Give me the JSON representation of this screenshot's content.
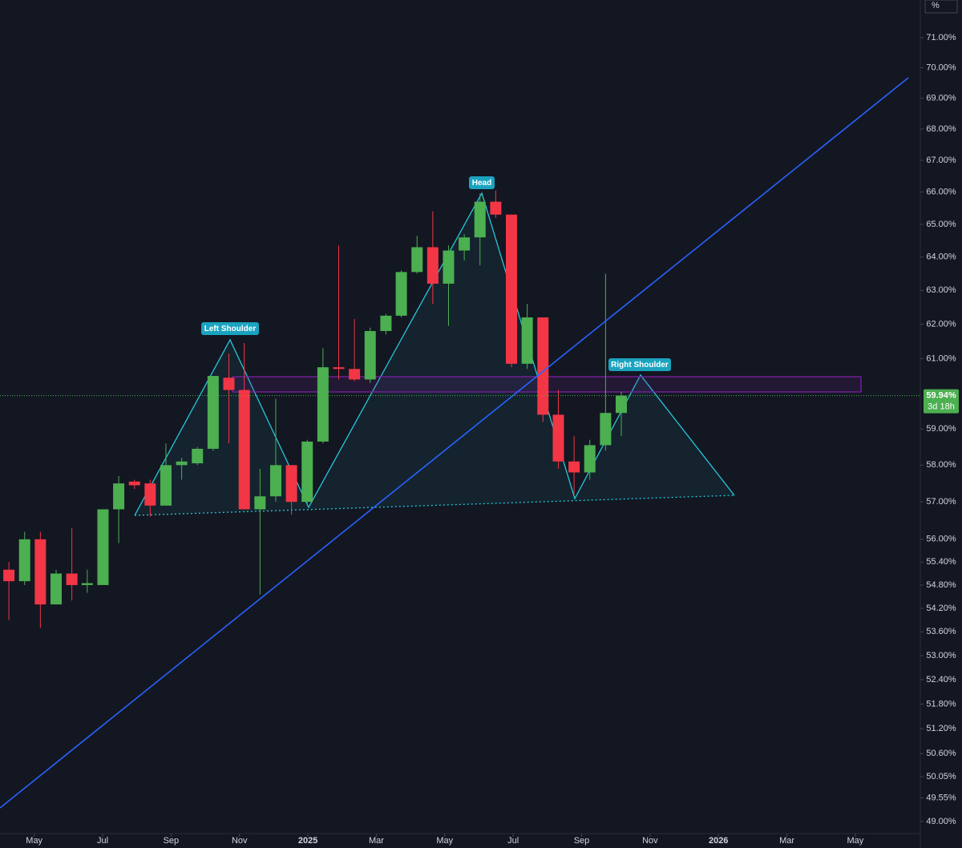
{
  "chart_data": {
    "type": "candlestick",
    "axis_unit": "%",
    "log_scale": true,
    "up_color": "#4caf50",
    "down_color": "#f23645",
    "x": [
      -8.74,
      -8.28,
      -7.82,
      -7.36,
      -6.9,
      -6.45,
      -5.99,
      -5.53,
      -5.07,
      -4.61,
      -4.15,
      -3.69,
      -3.23,
      -2.77,
      -2.31,
      -1.86,
      -1.4,
      -0.94,
      -0.48,
      -0.02,
      0.44,
      0.9,
      1.36,
      1.82,
      2.28,
      2.73,
      3.19,
      3.65,
      4.11,
      4.57,
      5.03,
      5.49,
      5.95,
      6.41,
      6.87,
      7.32,
      7.78,
      8.24,
      8.7,
      9.16
    ],
    "open": [
      55.2,
      54.9,
      56.0,
      54.3,
      55.1,
      54.8,
      54.8,
      56.8,
      57.55,
      57.5,
      56.9,
      58.0,
      58.05,
      58.45,
      60.45,
      60.1,
      56.8,
      57.15,
      58.0,
      57.0,
      58.65,
      60.75,
      60.7,
      60.4,
      61.8,
      62.25,
      63.55,
      64.3,
      63.2,
      64.2,
      64.6,
      65.7,
      65.3,
      60.85,
      62.2,
      59.4,
      58.1,
      57.8,
      58.55,
      59.45
    ],
    "high": [
      55.4,
      56.2,
      56.2,
      55.2,
      56.3,
      55.2,
      56.8,
      57.7,
      57.6,
      57.6,
      58.6,
      58.2,
      58.5,
      60.5,
      61.15,
      61.45,
      57.9,
      59.85,
      58.0,
      58.7,
      61.3,
      64.35,
      62.15,
      61.9,
      62.3,
      63.6,
      64.65,
      65.4,
      64.35,
      64.7,
      65.95,
      66.05,
      65.3,
      62.6,
      62.2,
      60.1,
      58.8,
      58.7,
      63.5,
      60.05
    ],
    "low": [
      53.9,
      54.8,
      53.7,
      54.3,
      54.4,
      54.6,
      54.8,
      55.9,
      57.35,
      56.6,
      56.9,
      57.6,
      58.0,
      58.4,
      58.6,
      56.8,
      54.55,
      57.0,
      56.65,
      56.9,
      58.6,
      60.4,
      60.35,
      60.3,
      61.7,
      62.2,
      63.5,
      62.6,
      61.95,
      63.9,
      63.75,
      65.2,
      60.75,
      60.7,
      59.2,
      57.9,
      57.2,
      57.6,
      58.4,
      58.8
    ],
    "close": [
      54.9,
      56.0,
      54.3,
      55.1,
      54.8,
      54.85,
      56.8,
      57.5,
      57.45,
      56.9,
      58.0,
      58.1,
      58.45,
      60.5,
      60.1,
      56.8,
      57.15,
      58.0,
      57.0,
      58.65,
      60.75,
      60.7,
      60.4,
      61.8,
      62.25,
      63.55,
      64.3,
      63.2,
      64.2,
      64.6,
      65.7,
      65.3,
      60.85,
      62.2,
      59.4,
      58.1,
      57.8,
      58.55,
      59.45,
      59.94
    ],
    "xlim": [
      -9,
      17.9
    ],
    "xticks": [
      {
        "value": -8,
        "label": "May"
      },
      {
        "value": -6,
        "label": "Jul"
      },
      {
        "value": -4,
        "label": "Sep"
      },
      {
        "value": -2,
        "label": "Nov"
      },
      {
        "value": 0,
        "label": "2025"
      },
      {
        "value": 2,
        "label": "Mar"
      },
      {
        "value": 4,
        "label": "May"
      },
      {
        "value": 6,
        "label": "Jul"
      },
      {
        "value": 8,
        "label": "Sep"
      },
      {
        "value": 10,
        "label": "Nov"
      },
      {
        "value": 12,
        "label": "2026"
      },
      {
        "value": 14,
        "label": "Mar"
      },
      {
        "value": 16,
        "label": "May"
      }
    ],
    "ylim": [
      48.72,
      72.28
    ],
    "yticks": [
      {
        "value": 71,
        "label": "71.00%"
      },
      {
        "value": 70,
        "label": "70.00%"
      },
      {
        "value": 69,
        "label": "69.00%"
      },
      {
        "value": 68,
        "label": "68.00%"
      },
      {
        "value": 67,
        "label": "67.00%"
      },
      {
        "value": 66,
        "label": "66.00%"
      },
      {
        "value": 65,
        "label": "65.00%"
      },
      {
        "value": 64,
        "label": "64.00%"
      },
      {
        "value": 63,
        "label": "63.00%"
      },
      {
        "value": 62,
        "label": "62.00%"
      },
      {
        "value": 61,
        "label": "61.00%"
      },
      {
        "value": 59,
        "label": "59.00%"
      },
      {
        "value": 58,
        "label": "58.00%"
      },
      {
        "value": 57,
        "label": "57.00%"
      },
      {
        "value": 56,
        "label": "56.00%"
      },
      {
        "value": 55.4,
        "label": "55.40%"
      },
      {
        "value": 54.8,
        "label": "54.80%"
      },
      {
        "value": 54.2,
        "label": "54.20%"
      },
      {
        "value": 53.6,
        "label": "53.60%"
      },
      {
        "value": 53,
        "label": "53.00%"
      },
      {
        "value": 52.4,
        "label": "52.40%"
      },
      {
        "value": 51.8,
        "label": "51.80%"
      },
      {
        "value": 51.2,
        "label": "51.20%"
      },
      {
        "value": 50.6,
        "label": "50.60%"
      },
      {
        "value": 50.05,
        "label": "50.05%"
      },
      {
        "value": 49.55,
        "label": "49.55%"
      },
      {
        "value": 49,
        "label": "49.00%"
      }
    ],
    "last_price": {
      "value": 59.94,
      "label": "59.94%"
    },
    "countdown": "3d 18h",
    "annotations": [
      "Left Shoulder",
      "Head",
      "Right Shoulder"
    ]
  }
}
